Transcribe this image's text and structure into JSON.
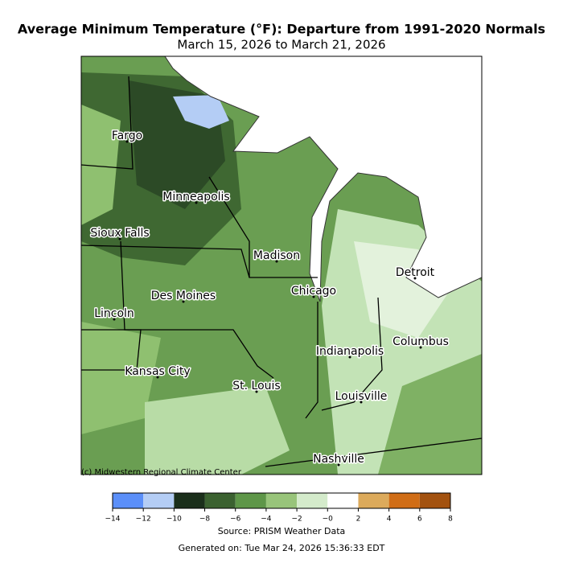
{
  "header": {
    "title": "Average Minimum Temperature (°F): Departure from 1991-2020 Normals",
    "subtitle": "March 15, 2026 to March 21, 2026"
  },
  "map": {
    "cities": [
      "Fargo",
      "Minneapolis",
      "Sioux Falls",
      "Madison",
      "Detroit",
      "Chicago",
      "Des Moines",
      "Lincoln",
      "Columbus",
      "Indianapolis",
      "Kansas City",
      "St. Louis",
      "Louisville",
      "Nashville"
    ],
    "credit": "(c) Midwestern Regional Climate Center"
  },
  "colorbar": {
    "ticks": [
      {
        "value": -14,
        "label": "−14"
      },
      {
        "value": -12,
        "label": "−12"
      },
      {
        "value": -10,
        "label": "−10"
      },
      {
        "value": -8,
        "label": "−8"
      },
      {
        "value": -6,
        "label": "−6"
      },
      {
        "value": -4,
        "label": "−4"
      },
      {
        "value": -2,
        "label": "−2"
      },
      {
        "value": 0,
        "label": "−0"
      },
      2,
      4,
      6,
      8
    ],
    "colors": [
      "#5b8ff9",
      "#b4cdf5",
      "#1b2f1b",
      "#3b6130",
      "#5e9648",
      "#98c47a",
      "#d4ebcb",
      "#ffffff",
      "#dcaa5b",
      "#d06d16",
      "#a3520f"
    ]
  },
  "footer": {
    "source": "Source: PRISM Weather Data",
    "generated": "Generated on: Tue Mar 24, 2026 15:36:33 EDT"
  }
}
